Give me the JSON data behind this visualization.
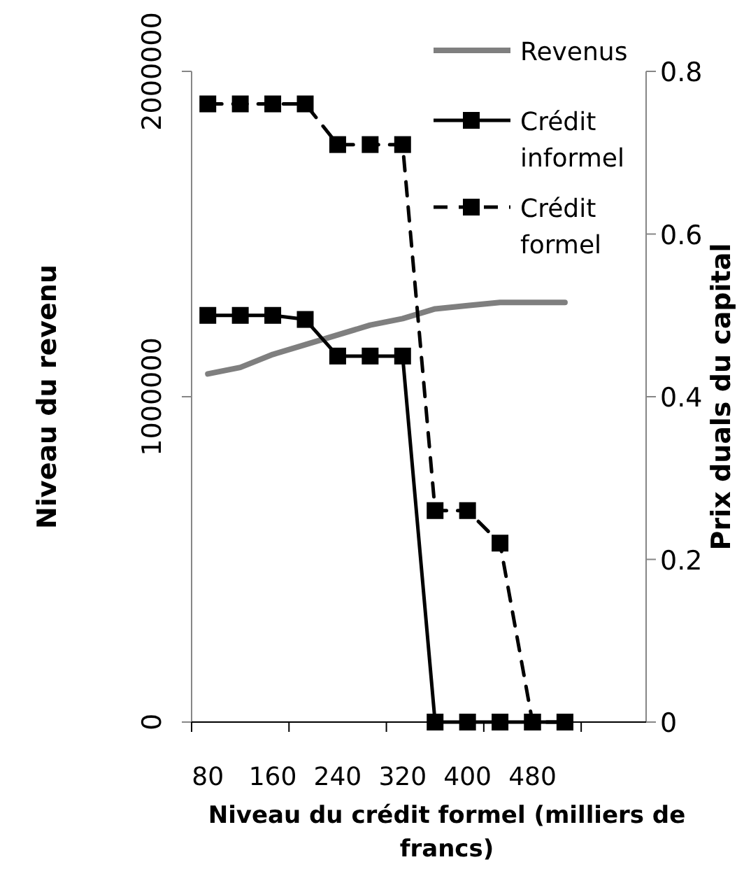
{
  "chart_data": {
    "type": "line",
    "ylabel": "Niveau du revenu",
    "y2label": "Prix duals du capital",
    "xlabel": "Niveau du crédit formel (milliers de francs)",
    "categories": [
      "80",
      null,
      "160",
      null,
      "240",
      null,
      "320",
      null,
      "400",
      null,
      "480",
      null,
      null,
      null
    ],
    "ylim": [
      0,
      2000000
    ],
    "yticks": [
      0,
      1000000,
      2000000
    ],
    "y2lim": [
      0,
      0.8
    ],
    "y2ticks": [
      0,
      0.2,
      0.4,
      0.6,
      0.8
    ],
    "legend": "top right",
    "grid": false,
    "series": [
      {
        "name": "Revenus",
        "color": "#7f7f7f",
        "marker": "none",
        "line_style": "solid",
        "values": [
          1070000,
          1090000,
          1130000,
          1160000,
          1190000,
          1220000,
          1240000,
          1270000,
          1280000,
          1290000,
          1290000,
          1290000,
          null,
          null
        ]
      },
      {
        "name": "Crédit informel",
        "color": "#000000",
        "axis": "y2",
        "marker": "square",
        "line_style": "solid",
        "values": [
          0.5,
          0.5,
          0.5,
          0.495,
          0.45,
          0.45,
          0.45,
          0,
          0,
          0,
          0,
          0,
          null,
          null
        ]
      },
      {
        "name": "Crédit formel",
        "color": "#000000",
        "axis": "y2",
        "marker": "square",
        "line_style": "dashed",
        "values": [
          0.76,
          0.76,
          0.76,
          0.76,
          0.71,
          0.71,
          0.71,
          0.26,
          0.26,
          0.22,
          0,
          0,
          null,
          null
        ]
      }
    ]
  }
}
